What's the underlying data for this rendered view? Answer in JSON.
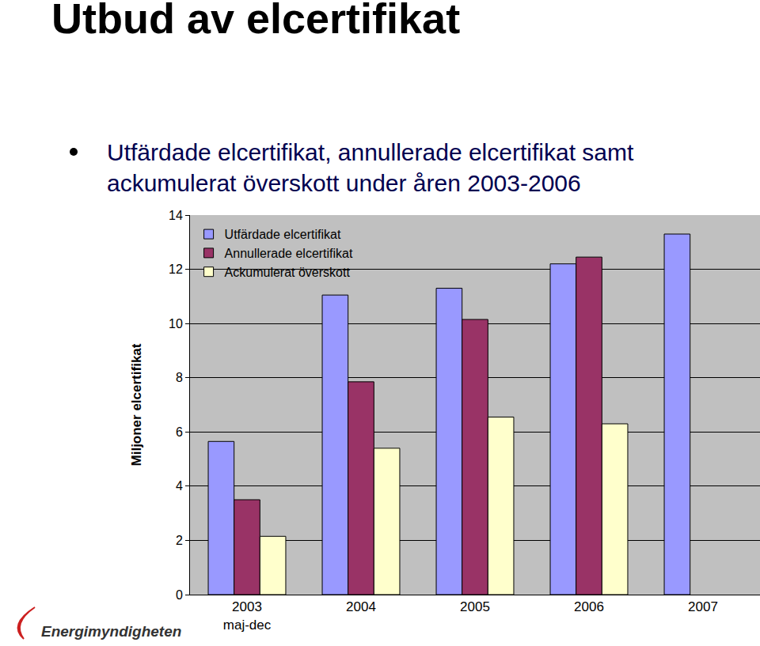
{
  "chart_data": {
    "type": "bar",
    "title": "Utbud av elcertifikat",
    "subtitle": "Utfärdade elcertifikat, annullerade elcertifikat samt\nackumulerat överskott under åren 2003-2006",
    "y_label": "Miljoner elcertifikat",
    "categories": [
      "2003\nmaj-dec",
      "2004",
      "2005",
      "2006",
      "2007"
    ],
    "series": [
      {
        "name": "Utfärdade elcertifikat",
        "color": "#9999ff",
        "values": [
          5.65,
          11.05,
          11.3,
          12.2,
          13.3
        ]
      },
      {
        "name": "Annullerade elcertifikat",
        "color": "#993366",
        "values": [
          3.5,
          7.85,
          10.15,
          12.45,
          null
        ]
      },
      {
        "name": "Ackumulerat överskott",
        "color": "#ffffcc",
        "values": [
          2.15,
          5.4,
          6.55,
          6.3,
          null
        ]
      }
    ],
    "ylim": [
      0,
      14
    ],
    "yticks": [
      0,
      2,
      4,
      6,
      8,
      10,
      12,
      14
    ],
    "grid": true,
    "legend": "upper left",
    "annotations": [
      "Energimyndigheten"
    ]
  }
}
